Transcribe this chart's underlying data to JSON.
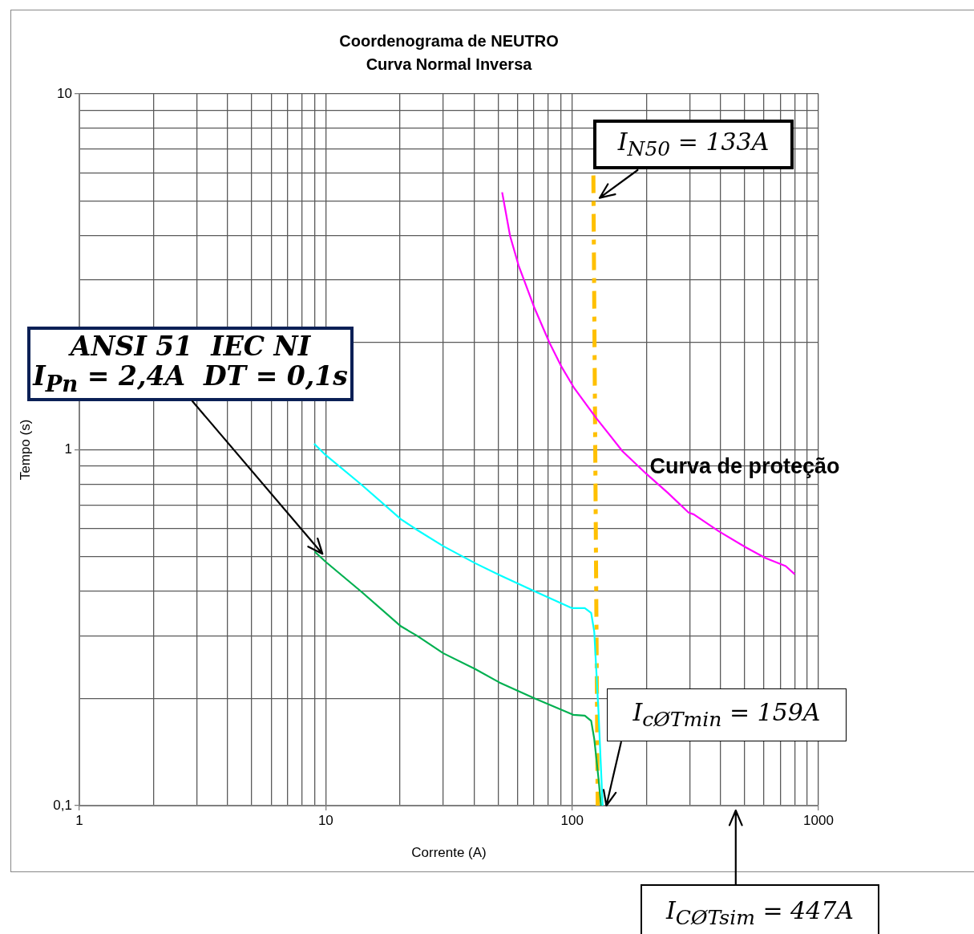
{
  "chart_data": {
    "type": "line",
    "title": "Coordenograma de NEUTRO",
    "subtitle": "Curva Normal Inversa",
    "xlabel": "Corrente (A)",
    "ylabel": "Tempo (s)",
    "log": "xy",
    "grid": true,
    "legend": false,
    "marker": "none",
    "xlim": [
      1,
      1000
    ],
    "xticks": [
      1,
      10,
      100,
      1000
    ],
    "ylim": [
      0.1,
      10
    ],
    "yticks": [
      {
        "value": 0.1,
        "label": "0,1"
      },
      1,
      10
    ],
    "series": [
      {
        "color": "#00ffff",
        "x": [
          8.97,
          10,
          13.9,
          20.2,
          23.5,
          30,
          40.4,
          50.6,
          70.6,
          99.6,
          112.6,
          119.5,
          123,
          128,
          133
        ],
        "values": [
          1.04,
          0.966,
          0.8,
          0.638,
          0.595,
          0.536,
          0.48,
          0.445,
          0.4,
          0.359,
          0.359,
          0.348,
          0.308,
          0.183,
          0.1
        ]
      },
      {
        "color": "#00b050",
        "x": [
          9,
          10,
          13.9,
          20.2,
          23.5,
          30,
          40.4,
          50.6,
          70.6,
          101,
          112.6,
          119.5,
          123,
          128,
          131
        ],
        "values": [
          0.518,
          0.484,
          0.4,
          0.319,
          0.3,
          0.268,
          0.242,
          0.222,
          0.2,
          0.18,
          0.179,
          0.173,
          0.154,
          0.119,
          0.1
        ]
      },
      {
        "name": "Curva de proteção",
        "color": "#ff00ff",
        "x": [
          52,
          56,
          60.6,
          70.4,
          80.9,
          90.6,
          102,
          125,
          160,
          200,
          244,
          297,
          312,
          394,
          506,
          610,
          736,
          801
        ],
        "values": [
          5.29,
          3.99,
          3.3,
          2.5,
          2,
          1.71,
          1.49,
          1.23,
          0.991,
          0.856,
          0.758,
          0.666,
          0.658,
          0.59,
          0.532,
          0.496,
          0.471,
          0.447
        ]
      },
      {
        "color": "#ffc000",
        "line_style": "dashed",
        "x": [
          122,
          127
        ],
        "values": [
          5.9,
          0.1
        ]
      }
    ],
    "annotations": [
      {
        "text": "I$_{N50}$ = 133A",
        "x": 129,
        "y": 5.1
      },
      {
        "text": "ANSI 51  IEC NI\nI$_{Pn}$ = 2,4A  DT = 0,1s",
        "x": 9.7,
        "y": 0.51
      },
      {
        "text": "I$_{cØTmin}$ = 159A",
        "x": 138,
        "y": 0.1
      },
      "I$_{CØTsim}$ = 447A"
    ]
  }
}
